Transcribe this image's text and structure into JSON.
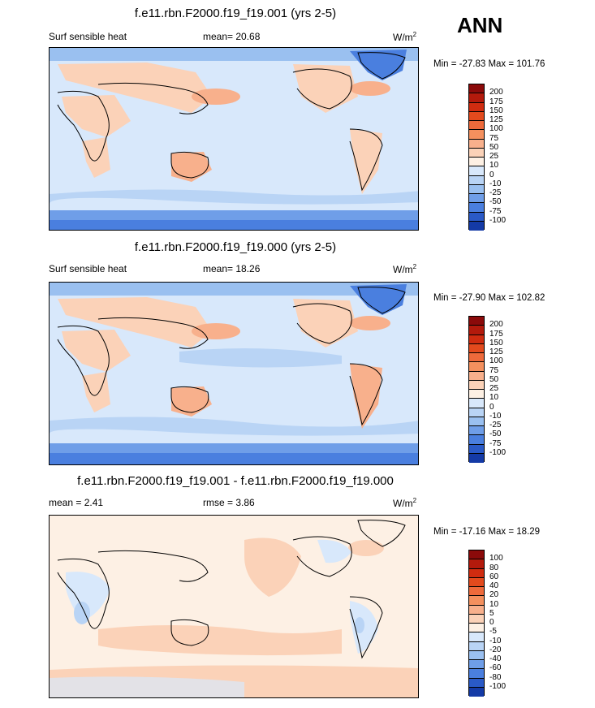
{
  "season": "ANN",
  "panels": [
    {
      "title": "f.e11.rbn.F2000.f19_f19.001 (yrs 2-5)",
      "left_label": "Surf sensible heat",
      "mean_label": "mean=  20.68",
      "units": "W/m",
      "units_sup": "2",
      "minmax": "Min = -27.83 Max = 101.76",
      "levels": [
        "200",
        "175",
        "150",
        "125",
        "100",
        "75",
        "50",
        "25",
        "10",
        "0",
        "-10",
        "-25",
        "-50",
        "-75",
        "-100"
      ],
      "colors": [
        "#8b0a0a",
        "#b31a0c",
        "#d02c10",
        "#e34a1d",
        "#ee6a3b",
        "#f4905e",
        "#f8b08c",
        "#fbd2b8",
        "#fdf0e4",
        "#d8e8fb",
        "#b9d4f5",
        "#9ac0f0",
        "#6f9ee8",
        "#4a7fdf",
        "#2a5ac7",
        "#143aa6"
      ]
    },
    {
      "title": "f.e11.rbn.F2000.f19_f19.000 (yrs 2-5)",
      "left_label": "Surf sensible heat",
      "mean_label": "mean=  18.26",
      "units": "W/m",
      "units_sup": "2",
      "minmax": "Min = -27.90 Max = 102.82",
      "levels": [
        "200",
        "175",
        "150",
        "125",
        "100",
        "75",
        "50",
        "25",
        "10",
        "0",
        "-10",
        "-25",
        "-50",
        "-75",
        "-100"
      ],
      "colors": [
        "#8b0a0a",
        "#b31a0c",
        "#d02c10",
        "#e34a1d",
        "#ee6a3b",
        "#f4905e",
        "#f8b08c",
        "#fbd2b8",
        "#fdf0e4",
        "#d8e8fb",
        "#b9d4f5",
        "#9ac0f0",
        "#6f9ee8",
        "#4a7fdf",
        "#2a5ac7",
        "#143aa6"
      ]
    },
    {
      "title": "f.e11.rbn.F2000.f19_f19.001 - f.e11.rbn.F2000.f19_f19.000",
      "left_label": "mean =   2.41",
      "mean_label": "rmse =   3.86",
      "units": "W/m",
      "units_sup": "2",
      "minmax": "Min = -17.16 Max =  18.29",
      "levels": [
        "100",
        "80",
        "60",
        "40",
        "20",
        "10",
        "5",
        "0",
        "-5",
        "-10",
        "-20",
        "-40",
        "-60",
        "-80",
        "-100"
      ],
      "colors": [
        "#8b0a0a",
        "#b31a0c",
        "#d02c10",
        "#e34a1d",
        "#ee6a3b",
        "#f4905e",
        "#f8b08c",
        "#fbd2b8",
        "#fdf0e4",
        "#d8e8fb",
        "#b9d4f5",
        "#9ac0f0",
        "#6f9ee8",
        "#4a7fdf",
        "#2a5ac7",
        "#143aa6"
      ]
    }
  ]
}
